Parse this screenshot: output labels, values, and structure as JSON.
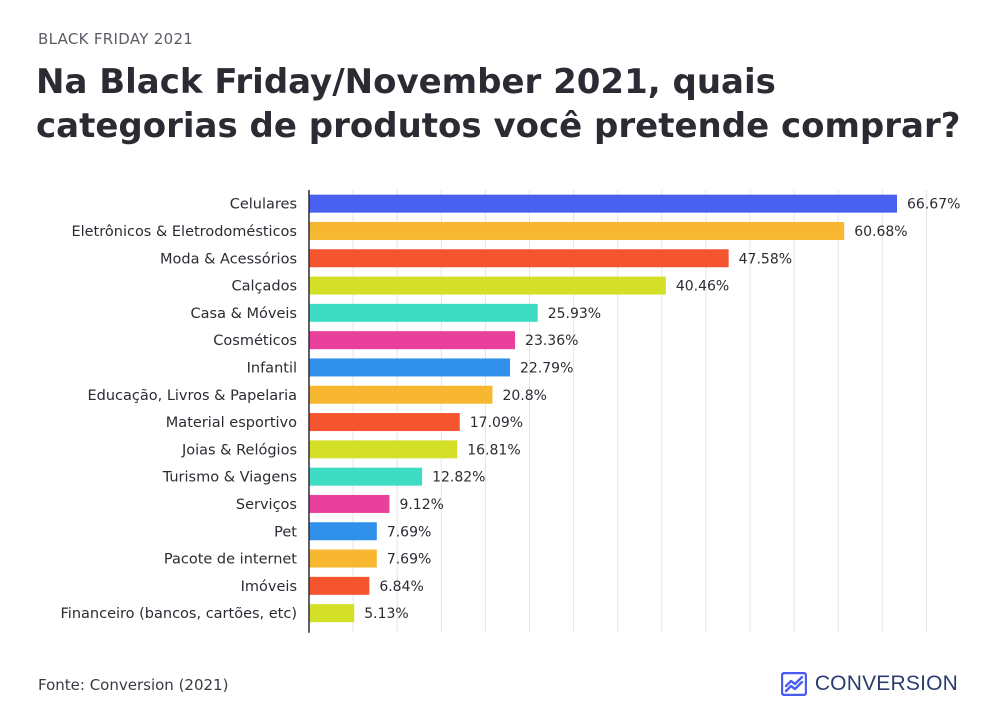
{
  "header": {
    "eyebrow": "BLACK FRIDAY 2021",
    "title": "Na Black Friday/November 2021, quais categorias de produtos você pretende comprar?"
  },
  "footer": {
    "source": "Fonte: Conversion (2021)",
    "brand": "CONVERSION"
  },
  "colors": {
    "brand": "#2a3d6e",
    "brand_icon": "#4a5df0",
    "grid": "#e4e4e8",
    "axis": "#2b2b33"
  },
  "chart_data": {
    "type": "bar",
    "orientation": "horizontal",
    "xlim": [
      0,
      70
    ],
    "grid": true,
    "value_suffix": "%",
    "categories": [
      "Celulares",
      "Eletrônicos & Eletrodomésticos",
      "Moda & Acessórios",
      "Calçados",
      "Casa & Móveis",
      "Cosméticos",
      "Infantil",
      "Educação, Livros & Papelaria",
      "Material esportivo",
      "Joias & Relógios",
      "Turismo & Viagens",
      "Serviços",
      "Pet",
      "Pacote de internet",
      "Imóveis",
      "Financeiro (bancos, cartões, etc)"
    ],
    "values": [
      66.67,
      60.68,
      47.58,
      40.46,
      25.93,
      23.36,
      22.79,
      20.8,
      17.09,
      16.81,
      12.82,
      9.12,
      7.69,
      7.69,
      6.84,
      5.13
    ],
    "bar_colors": [
      "#4a60ef",
      "#f7b731",
      "#f5552e",
      "#d4e027",
      "#3fdcc4",
      "#e8409b",
      "#3090ea",
      "#f7b731",
      "#f5552e",
      "#d4e027",
      "#3fdcc4",
      "#e8409b",
      "#3090ea",
      "#f7b731",
      "#f5552e",
      "#d4e027"
    ]
  }
}
